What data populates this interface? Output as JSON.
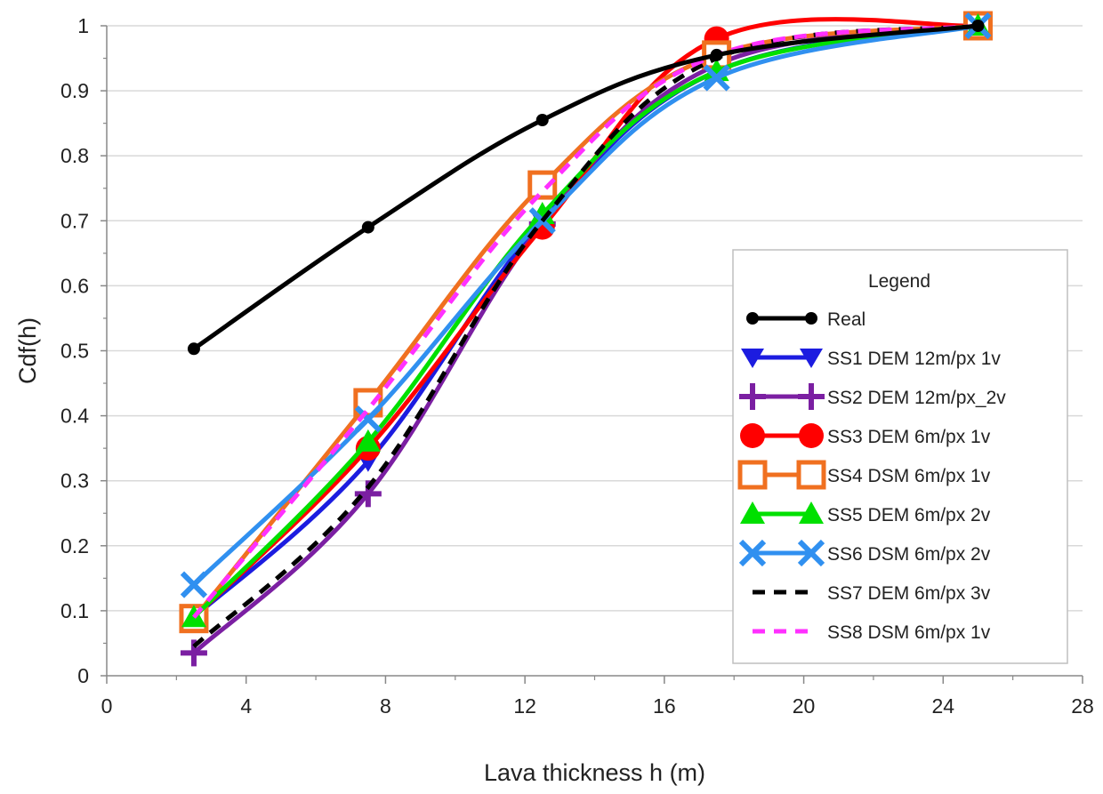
{
  "chart_data": {
    "type": "line",
    "title": "",
    "xlabel": "Lava thickness h (m)",
    "ylabel": "Cdf(h)",
    "xlim": [
      0,
      28
    ],
    "ylim": [
      0,
      1
    ],
    "xticks": [
      0,
      4,
      8,
      12,
      16,
      20,
      24,
      28
    ],
    "xtick_labels": [
      "0",
      "4",
      "8",
      "12",
      "16",
      "20",
      "24",
      "28"
    ],
    "yticks": [
      0,
      0.1,
      0.2,
      0.3,
      0.4,
      0.5,
      0.6,
      0.7,
      0.8,
      0.9,
      1
    ],
    "ytick_labels": [
      "0",
      "0.1",
      "0.2",
      "0.3",
      "0.4",
      "0.5",
      "0.6",
      "0.7",
      "0.8",
      "0.9",
      "1"
    ],
    "grid": "horizontal",
    "legend_title": "Legend",
    "legend_position": "right",
    "series": [
      {
        "name": "Real",
        "color": "#000000",
        "marker": "dot",
        "dash": "solid",
        "x": [
          2.5,
          7.5,
          12.5,
          17.5,
          25
        ],
        "y": [
          0.503,
          0.69,
          0.855,
          0.955,
          1.0
        ]
      },
      {
        "name": "SS1 DEM 12m/px 1v",
        "color": "#1c1ce0",
        "marker": "triangle-down",
        "dash": "solid",
        "x": [
          2.5,
          7.5,
          12.5,
          17.5,
          25
        ],
        "y": [
          0.09,
          0.33,
          0.7,
          0.93,
          1.0
        ]
      },
      {
        "name": "SS2 DEM 12m/px_2v",
        "color": "#7b1fa2",
        "marker": "plus",
        "dash": "solid",
        "x": [
          2.5,
          7.5,
          12.5,
          17.5,
          25
        ],
        "y": [
          0.035,
          0.28,
          0.695,
          0.94,
          1.0
        ]
      },
      {
        "name": "SS3 DEM 6m/px 1v",
        "color": "#ff0000",
        "marker": "circle",
        "dash": "solid",
        "x": [
          2.5,
          7.5,
          12.5,
          17.5,
          25
        ],
        "y": [
          0.09,
          0.35,
          0.69,
          0.98,
          1.0
        ]
      },
      {
        "name": "SS4 DSM 6m/px 1v",
        "color": "#f07020",
        "marker": "square",
        "dash": "solid",
        "x": [
          2.5,
          7.5,
          12.5,
          17.5,
          25
        ],
        "y": [
          0.088,
          0.42,
          0.755,
          0.955,
          1.0
        ]
      },
      {
        "name": "SS5 DEM 6m/px 2v",
        "color": "#00e000",
        "marker": "triangle-up",
        "dash": "solid",
        "x": [
          2.5,
          7.5,
          12.5,
          17.5,
          25
        ],
        "y": [
          0.09,
          0.36,
          0.71,
          0.93,
          1.0
        ]
      },
      {
        "name": "SS6 DSM 6m/px 2v",
        "color": "#3090f0",
        "marker": "x",
        "dash": "solid",
        "x": [
          2.5,
          7.5,
          12.5,
          17.5,
          25
        ],
        "y": [
          0.14,
          0.395,
          0.7,
          0.92,
          1.0
        ]
      },
      {
        "name": "SS7 DEM 6m/px 3v",
        "color": "#000000",
        "marker": "none",
        "dash": "dashed",
        "x": [
          2.5,
          7.5,
          12.5,
          17.5,
          25
        ],
        "y": [
          0.045,
          0.29,
          0.7,
          0.95,
          1.0
        ]
      },
      {
        "name": "SS8 DSM 6m/px 1v",
        "color": "#ff30ff",
        "marker": "none",
        "dash": "dashed",
        "x": [
          2.5,
          7.5,
          12.5,
          17.5,
          25
        ],
        "y": [
          0.09,
          0.41,
          0.745,
          0.955,
          1.0
        ]
      }
    ]
  }
}
